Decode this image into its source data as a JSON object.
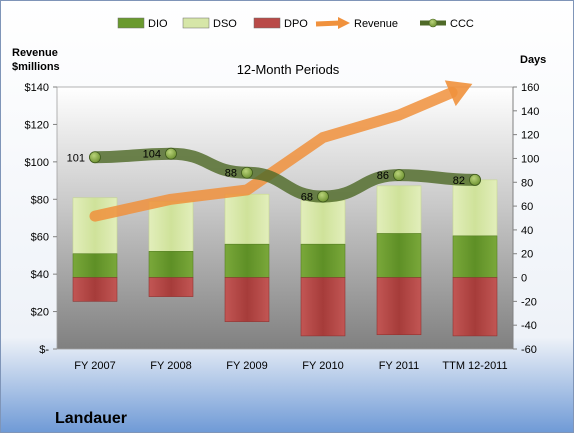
{
  "chart_data": {
    "type": "bar",
    "title": "12-Month Periods",
    "company": "Landauer",
    "left_axis": {
      "label_line1": "Revenue",
      "label_line2": "$millions",
      "range": [
        0,
        140
      ],
      "ticks": [
        0,
        20,
        40,
        60,
        80,
        100,
        120,
        140
      ],
      "tick_labels": [
        "$-",
        "$20",
        "$40",
        "$60",
        "$80",
        "$100",
        "$120",
        "$140"
      ]
    },
    "right_axis": {
      "label": "Days",
      "range": [
        -60,
        160
      ],
      "ticks": [
        -60,
        -40,
        -20,
        0,
        20,
        40,
        60,
        80,
        100,
        120,
        140,
        160
      ],
      "tick_labels": [
        "-60",
        "-40",
        "-20",
        "0",
        "20",
        "40",
        "60",
        "80",
        "100",
        "120",
        "140",
        "160"
      ]
    },
    "categories": [
      "FY 2007",
      "FY 2008",
      "FY 2009",
      "FY 2010",
      "FY 2011",
      "TTM 12-2011"
    ],
    "legend": [
      {
        "key": "dio",
        "label": "DIO",
        "color": "#6a9a2e",
        "kind": "box"
      },
      {
        "key": "dso",
        "label": "DSO",
        "color": "#d6e6a8",
        "kind": "box"
      },
      {
        "key": "dpo",
        "label": "DPO",
        "color": "#b94a48",
        "kind": "box"
      },
      {
        "key": "revenue",
        "label": "Revenue",
        "color": "#f0913c",
        "kind": "arrow"
      },
      {
        "key": "ccc",
        "label": "CCC",
        "color": "#4f6a28",
        "kind": "line-dot"
      }
    ],
    "series_days": {
      "dio": [
        20,
        22,
        28,
        28,
        37,
        35
      ],
      "dso": [
        47,
        42,
        42,
        37,
        40,
        47
      ],
      "dpo": [
        -20,
        -16,
        -37,
        -49,
        -48,
        -49
      ],
      "ccc": [
        101,
        104,
        88,
        68,
        86,
        82
      ]
    },
    "ccc_labels": [
      "101",
      "104",
      "88",
      "68",
      "86",
      "82"
    ],
    "revenue_trend": [
      71,
      80,
      85,
      113,
      125,
      140
    ],
    "colors": {
      "plot_top": "#ffffff",
      "plot_bottom": "#7f7f7f",
      "page_top": "#ffffff",
      "page_bottom": "#6f9ad6",
      "border": "#7f95b8"
    }
  }
}
